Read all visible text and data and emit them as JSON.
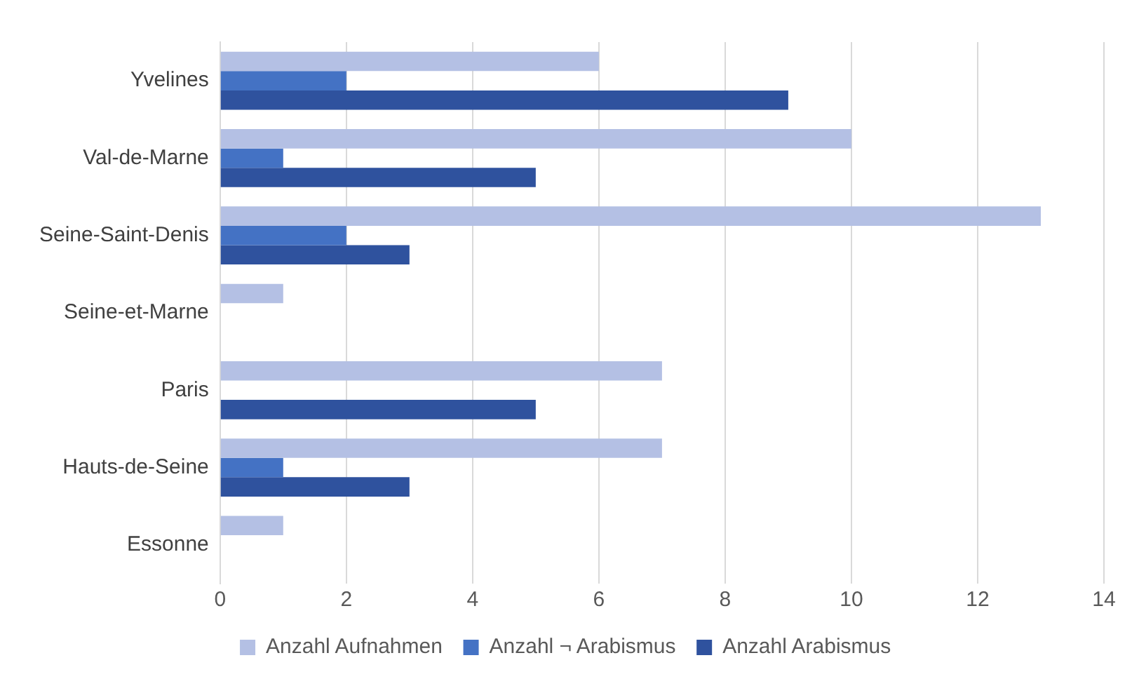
{
  "chart_data": {
    "type": "bar",
    "orientation": "horizontal",
    "categories": [
      "Yvelines",
      "Val-de-Marne",
      "Seine-Saint-Denis",
      "Seine-et-Marne",
      "Paris",
      "Hauts-de-Seine",
      "Essonne"
    ],
    "series": [
      {
        "name": "Anzahl Aufnahmen",
        "color": "#b4c0e4",
        "values": [
          6,
          10,
          13,
          1,
          7,
          7,
          1
        ]
      },
      {
        "name": "Anzahl ¬ Arabismus",
        "color": "#4472c4",
        "values": [
          2,
          1,
          2,
          0,
          0,
          1,
          0
        ]
      },
      {
        "name": "Anzahl Arabismus",
        "color": "#2f529e",
        "values": [
          9,
          5,
          3,
          0,
          5,
          3,
          0
        ]
      }
    ],
    "xlim": [
      0,
      14
    ],
    "xticks": [
      0,
      2,
      4,
      6,
      8,
      10,
      12,
      14
    ],
    "grid": "x",
    "legend": "bottom"
  }
}
